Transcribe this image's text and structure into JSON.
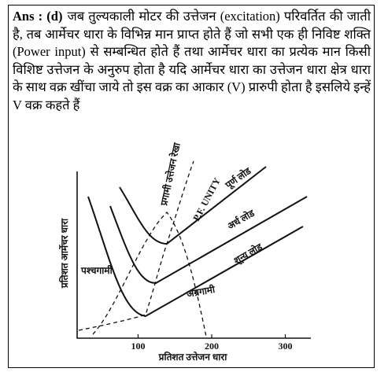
{
  "answer": {
    "label": "Ans : (d)",
    "text": "जब तुल्यकाली मोटर की उत्तेजन (excitation) परिवर्तित की जाती है, तब आर्मेचर धारा के विभिन्न मान प्राप्त होते हैं जो सभी एक ही निविष्ट शक्ति (Power input) से सम्बन्धित होते हैं तथा आर्मेचर धारा का प्रत्येक मान किसी विशिष्ट उत्तेजन के अनुरुप होता है यदि आर्मेचर धारा का उत्तेजन धारा क्षेत्र धारा के साथ वक्र खींचा जाये तो इस वक्र का आकार (V) प्रारुपी होता है इसलिये इन्हें V वक्र कहते हैं"
  },
  "figure": {
    "y_axis_label": "प्रतिशत आर्मेचर धारा",
    "x_axis_label": "प्रतिशत उत्तेजन धारा",
    "x_ticks": [
      100,
      200,
      300
    ],
    "curve_labels": {
      "full_load": "पूर्ण लोड",
      "half_load": "अर्ध लोड",
      "no_load": "शून्य लोड",
      "leading": "अग्रगामी",
      "lagging": "पश्चगामी",
      "unity": "P.F. UNITY",
      "excitation_line": "प्रगामी उत्तेजन रेखा"
    }
  }
}
